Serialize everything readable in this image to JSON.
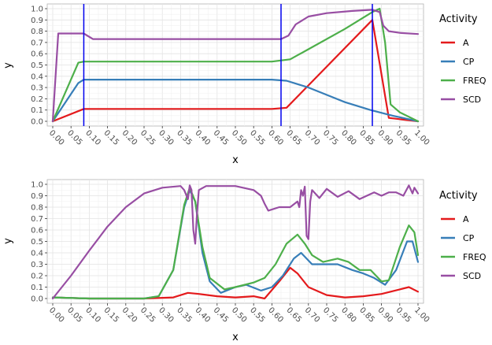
{
  "chart_data": [
    {
      "type": "line",
      "xlabel": "x",
      "ylabel": "y",
      "xlim": [
        0,
        1
      ],
      "ylim": [
        0,
        1
      ],
      "x_ticks": [
        "0.00",
        "0.05",
        "0.10",
        "0.15",
        "0.20",
        "0.25",
        "0.30",
        "0.35",
        "0.40",
        "0.45",
        "0.50",
        "0.55",
        "0.60",
        "0.65",
        "0.70",
        "0.75",
        "0.80",
        "0.85",
        "0.90",
        "0.95",
        "1.00"
      ],
      "y_ticks": [
        "0.0",
        "0.1",
        "0.2",
        "0.3",
        "0.4",
        "0.5",
        "0.6",
        "0.7",
        "0.8",
        "0.9",
        "1.0"
      ],
      "grid": true,
      "legend_title": "Activity",
      "legend_position": "right",
      "vlines": [
        0.085,
        0.625,
        0.875
      ],
      "vline_color": "#0000ee",
      "series": [
        {
          "name": "A",
          "color": "#e41a1c",
          "points": [
            [
              0,
              0
            ],
            [
              0.085,
              0.11
            ],
            [
              0.2,
              0.11
            ],
            [
              0.4,
              0.11
            ],
            [
              0.6,
              0.11
            ],
            [
              0.64,
              0.12
            ],
            [
              0.875,
              0.9
            ],
            [
              0.92,
              0.03
            ],
            [
              1.0,
              0.0
            ]
          ]
        },
        {
          "name": "CP",
          "color": "#377eb8",
          "points": [
            [
              0,
              0
            ],
            [
              0.07,
              0.34
            ],
            [
              0.085,
              0.37
            ],
            [
              0.2,
              0.37
            ],
            [
              0.4,
              0.37
            ],
            [
              0.6,
              0.37
            ],
            [
              0.64,
              0.36
            ],
            [
              0.7,
              0.3
            ],
            [
              0.8,
              0.17
            ],
            [
              0.87,
              0.1
            ],
            [
              0.93,
              0.05
            ],
            [
              1.0,
              0.0
            ]
          ]
        },
        {
          "name": "FREQ",
          "color": "#4daf4a",
          "points": [
            [
              0,
              0
            ],
            [
              0.07,
              0.52
            ],
            [
              0.085,
              0.53
            ],
            [
              0.2,
              0.53
            ],
            [
              0.4,
              0.53
            ],
            [
              0.6,
              0.53
            ],
            [
              0.65,
              0.55
            ],
            [
              0.7,
              0.64
            ],
            [
              0.8,
              0.82
            ],
            [
              0.875,
              0.97
            ],
            [
              0.895,
              1.0
            ],
            [
              0.91,
              0.7
            ],
            [
              0.925,
              0.15
            ],
            [
              0.95,
              0.08
            ],
            [
              1.0,
              0.0
            ]
          ]
        },
        {
          "name": "SCD",
          "color": "#984ea3",
          "points": [
            [
              0,
              0
            ],
            [
              0.015,
              0.78
            ],
            [
              0.085,
              0.78
            ],
            [
              0.11,
              0.73
            ],
            [
              0.2,
              0.73
            ],
            [
              0.4,
              0.73
            ],
            [
              0.625,
              0.73
            ],
            [
              0.645,
              0.76
            ],
            [
              0.665,
              0.86
            ],
            [
              0.7,
              0.93
            ],
            [
              0.75,
              0.96
            ],
            [
              0.82,
              0.98
            ],
            [
              0.875,
              0.99
            ],
            [
              0.895,
              0.97
            ],
            [
              0.905,
              0.85
            ],
            [
              0.92,
              0.8
            ],
            [
              0.95,
              0.785
            ],
            [
              1.0,
              0.775
            ]
          ]
        }
      ]
    },
    {
      "type": "line",
      "xlabel": "x",
      "ylabel": "y",
      "xlim": [
        0,
        1
      ],
      "ylim": [
        0,
        1
      ],
      "x_ticks": [
        "0.00",
        "0.05",
        "0.10",
        "0.15",
        "0.20",
        "0.25",
        "0.30",
        "0.35",
        "0.40",
        "0.45",
        "0.50",
        "0.55",
        "0.60",
        "0.65",
        "0.70",
        "0.75",
        "0.80",
        "0.85",
        "0.90",
        "0.95",
        "1.00"
      ],
      "y_ticks": [
        "0.0",
        "0.1",
        "0.2",
        "0.3",
        "0.4",
        "0.5",
        "0.6",
        "0.7",
        "0.8",
        "0.9",
        "1.0"
      ],
      "grid": true,
      "legend_title": "Activity",
      "legend_position": "right",
      "series": [
        {
          "name": "A",
          "color": "#e41a1c",
          "points": [
            [
              0,
              0.01
            ],
            [
              0.1,
              0.0
            ],
            [
              0.25,
              0.0
            ],
            [
              0.33,
              0.01
            ],
            [
              0.37,
              0.05
            ],
            [
              0.4,
              0.04
            ],
            [
              0.45,
              0.02
            ],
            [
              0.5,
              0.01
            ],
            [
              0.55,
              0.02
            ],
            [
              0.58,
              0.0
            ],
            [
              0.62,
              0.15
            ],
            [
              0.65,
              0.27
            ],
            [
              0.67,
              0.22
            ],
            [
              0.7,
              0.1
            ],
            [
              0.75,
              0.03
            ],
            [
              0.8,
              0.01
            ],
            [
              0.85,
              0.02
            ],
            [
              0.9,
              0.04
            ],
            [
              0.95,
              0.08
            ],
            [
              0.975,
              0.1
            ],
            [
              1.0,
              0.06
            ]
          ]
        },
        {
          "name": "CP",
          "color": "#377eb8",
          "points": [
            [
              0,
              0.01
            ],
            [
              0.1,
              0.0
            ],
            [
              0.25,
              0.0
            ],
            [
              0.29,
              0.02
            ],
            [
              0.33,
              0.25
            ],
            [
              0.36,
              0.8
            ],
            [
              0.375,
              0.95
            ],
            [
              0.39,
              0.85
            ],
            [
              0.41,
              0.4
            ],
            [
              0.43,
              0.15
            ],
            [
              0.46,
              0.05
            ],
            [
              0.5,
              0.1
            ],
            [
              0.53,
              0.12
            ],
            [
              0.57,
              0.07
            ],
            [
              0.6,
              0.1
            ],
            [
              0.63,
              0.2
            ],
            [
              0.66,
              0.35
            ],
            [
              0.68,
              0.4
            ],
            [
              0.71,
              0.3
            ],
            [
              0.75,
              0.3
            ],
            [
              0.78,
              0.3
            ],
            [
              0.82,
              0.25
            ],
            [
              0.85,
              0.22
            ],
            [
              0.88,
              0.18
            ],
            [
              0.91,
              0.12
            ],
            [
              0.94,
              0.25
            ],
            [
              0.97,
              0.5
            ],
            [
              0.985,
              0.5
            ],
            [
              1.0,
              0.32
            ]
          ]
        },
        {
          "name": "FREQ",
          "color": "#4daf4a",
          "points": [
            [
              0,
              0.01
            ],
            [
              0.1,
              0.0
            ],
            [
              0.25,
              0.0
            ],
            [
              0.29,
              0.02
            ],
            [
              0.33,
              0.25
            ],
            [
              0.36,
              0.82
            ],
            [
              0.375,
              0.97
            ],
            [
              0.39,
              0.85
            ],
            [
              0.41,
              0.45
            ],
            [
              0.43,
              0.18
            ],
            [
              0.47,
              0.08
            ],
            [
              0.5,
              0.1
            ],
            [
              0.55,
              0.14
            ],
            [
              0.58,
              0.18
            ],
            [
              0.61,
              0.3
            ],
            [
              0.64,
              0.48
            ],
            [
              0.67,
              0.56
            ],
            [
              0.69,
              0.48
            ],
            [
              0.71,
              0.38
            ],
            [
              0.74,
              0.32
            ],
            [
              0.78,
              0.35
            ],
            [
              0.81,
              0.32
            ],
            [
              0.84,
              0.25
            ],
            [
              0.87,
              0.25
            ],
            [
              0.9,
              0.15
            ],
            [
              0.92,
              0.16
            ],
            [
              0.95,
              0.45
            ],
            [
              0.975,
              0.64
            ],
            [
              0.99,
              0.58
            ],
            [
              1.0,
              0.38
            ]
          ]
        },
        {
          "name": "SCD",
          "color": "#984ea3",
          "points": [
            [
              0,
              0
            ],
            [
              0.05,
              0.2
            ],
            [
              0.1,
              0.42
            ],
            [
              0.15,
              0.63
            ],
            [
              0.2,
              0.8
            ],
            [
              0.25,
              0.92
            ],
            [
              0.3,
              0.97
            ],
            [
              0.35,
              0.985
            ],
            [
              0.36,
              0.95
            ],
            [
              0.37,
              0.87
            ],
            [
              0.375,
              0.99
            ],
            [
              0.38,
              0.95
            ],
            [
              0.385,
              0.6
            ],
            [
              0.39,
              0.48
            ],
            [
              0.395,
              0.75
            ],
            [
              0.4,
              0.95
            ],
            [
              0.42,
              0.985
            ],
            [
              0.5,
              0.985
            ],
            [
              0.55,
              0.95
            ],
            [
              0.57,
              0.9
            ],
            [
              0.58,
              0.83
            ],
            [
              0.59,
              0.77
            ],
            [
              0.62,
              0.8
            ],
            [
              0.65,
              0.8
            ],
            [
              0.67,
              0.85
            ],
            [
              0.675,
              0.8
            ],
            [
              0.68,
              0.95
            ],
            [
              0.685,
              0.9
            ],
            [
              0.69,
              0.98
            ],
            [
              0.695,
              0.55
            ],
            [
              0.7,
              0.52
            ],
            [
              0.705,
              0.85
            ],
            [
              0.71,
              0.95
            ],
            [
              0.73,
              0.88
            ],
            [
              0.75,
              0.96
            ],
            [
              0.78,
              0.89
            ],
            [
              0.81,
              0.94
            ],
            [
              0.84,
              0.87
            ],
            [
              0.86,
              0.9
            ],
            [
              0.88,
              0.93
            ],
            [
              0.9,
              0.9
            ],
            [
              0.92,
              0.93
            ],
            [
              0.94,
              0.93
            ],
            [
              0.96,
              0.9
            ],
            [
              0.975,
              0.99
            ],
            [
              0.985,
              0.92
            ],
            [
              0.99,
              0.97
            ],
            [
              1.0,
              0.92
            ]
          ]
        }
      ]
    }
  ]
}
